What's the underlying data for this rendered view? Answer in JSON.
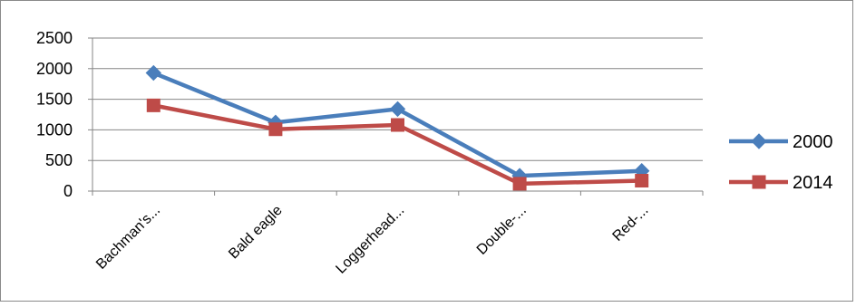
{
  "chart_data": {
    "type": "line",
    "categories": [
      "Bachman's...",
      "Bald eagle",
      "Loggerhead...",
      "Double-...",
      "Red-..."
    ],
    "series": [
      {
        "name": "2000",
        "values": [
          1930,
          1120,
          1340,
          250,
          330
        ],
        "color": "#4a7ebb",
        "marker": "diamond"
      },
      {
        "name": "2014",
        "values": [
          1400,
          1010,
          1080,
          120,
          170
        ],
        "color": "#be4b48",
        "marker": "square"
      }
    ],
    "ylim": [
      0,
      2500
    ],
    "yticks": [
      "0",
      "500",
      "1000",
      "1500",
      "2000",
      "2500"
    ],
    "grid": true,
    "legend": "right"
  }
}
